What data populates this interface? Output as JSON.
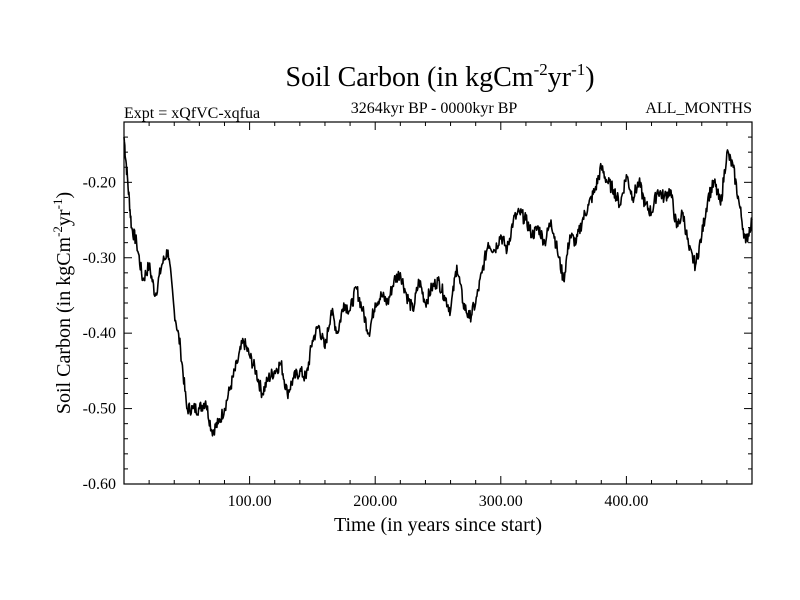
{
  "chart_data": {
    "type": "line",
    "title_main": "Soil Carbon (in kgCm",
    "title_sup1": "-2",
    "title_mid": "yr",
    "title_sup2": "-1",
    "title_end": ")",
    "subtitle_left": "Expt = xQfVC-xqfua",
    "subtitle_center": "3264kyr BP - 0000kyr BP",
    "subtitle_right": "ALL_MONTHS",
    "xlabel": "Time (in years since start)",
    "ylabel_main": "Soil Carbon (in kgCm",
    "ylabel_sup1": "-2",
    "ylabel_mid": "yr",
    "ylabel_sup2": "-1",
    "ylabel_end": ")",
    "xlim": [
      0,
      500
    ],
    "ylim": [
      -0.6,
      -0.12
    ],
    "x_ticks": [
      100,
      200,
      300,
      400
    ],
    "x_tick_labels": [
      "100.00",
      "200.00",
      "300.00",
      "400.00"
    ],
    "y_ticks": [
      -0.6,
      -0.5,
      -0.4,
      -0.3,
      -0.2
    ],
    "y_tick_labels": [
      "-0.60",
      "-0.50",
      "-0.40",
      "-0.30",
      "-0.20"
    ],
    "line_color": "#000000",
    "series": [
      {
        "name": "Soil Carbon",
        "x": [
          0,
          3,
          6,
          10,
          15,
          20,
          25,
          30,
          35,
          40,
          45,
          50,
          55,
          60,
          65,
          70,
          75,
          80,
          85,
          90,
          95,
          100,
          105,
          110,
          115,
          120,
          125,
          130,
          135,
          140,
          145,
          150,
          155,
          160,
          165,
          170,
          175,
          180,
          185,
          190,
          195,
          200,
          205,
          210,
          215,
          220,
          225,
          230,
          235,
          240,
          245,
          250,
          255,
          260,
          265,
          270,
          275,
          280,
          285,
          290,
          295,
          300,
          305,
          310,
          315,
          320,
          325,
          330,
          335,
          340,
          345,
          350,
          355,
          360,
          365,
          370,
          375,
          380,
          385,
          390,
          395,
          400,
          405,
          410,
          415,
          420,
          425,
          430,
          435,
          440,
          445,
          450,
          455,
          460,
          465,
          470,
          475,
          480,
          485,
          490,
          495,
          500
        ],
        "y": [
          -0.14,
          -0.2,
          -0.26,
          -0.28,
          -0.33,
          -0.31,
          -0.35,
          -0.31,
          -0.29,
          -0.37,
          -0.42,
          -0.5,
          -0.5,
          -0.5,
          -0.49,
          -0.53,
          -0.52,
          -0.5,
          -0.47,
          -0.44,
          -0.41,
          -0.43,
          -0.45,
          -0.48,
          -0.46,
          -0.45,
          -0.44,
          -0.48,
          -0.46,
          -0.45,
          -0.46,
          -0.41,
          -0.39,
          -0.42,
          -0.37,
          -0.4,
          -0.36,
          -0.37,
          -0.34,
          -0.37,
          -0.4,
          -0.36,
          -0.35,
          -0.36,
          -0.33,
          -0.32,
          -0.35,
          -0.37,
          -0.33,
          -0.36,
          -0.34,
          -0.33,
          -0.35,
          -0.37,
          -0.31,
          -0.36,
          -0.38,
          -0.36,
          -0.32,
          -0.28,
          -0.29,
          -0.27,
          -0.29,
          -0.25,
          -0.24,
          -0.25,
          -0.27,
          -0.26,
          -0.28,
          -0.25,
          -0.29,
          -0.33,
          -0.27,
          -0.28,
          -0.25,
          -0.23,
          -0.21,
          -0.18,
          -0.2,
          -0.21,
          -0.23,
          -0.19,
          -0.22,
          -0.2,
          -0.23,
          -0.24,
          -0.21,
          -0.22,
          -0.21,
          -0.26,
          -0.24,
          -0.29,
          -0.31,
          -0.27,
          -0.22,
          -0.2,
          -0.23,
          -0.16,
          -0.18,
          -0.23,
          -0.28,
          -0.25
        ]
      }
    ]
  }
}
